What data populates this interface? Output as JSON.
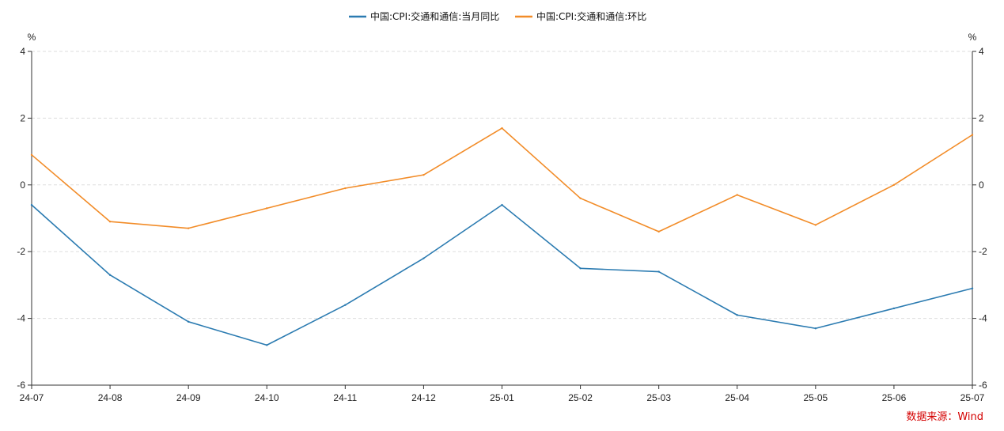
{
  "chart_data": {
    "type": "line",
    "categories": [
      "24-07",
      "24-08",
      "24-09",
      "24-10",
      "24-11",
      "24-12",
      "25-01",
      "25-02",
      "25-03",
      "25-04",
      "25-05",
      "25-06",
      "25-07"
    ],
    "series": [
      {
        "name": "中国:CPI:交通和通信:当月同比",
        "color": "#2b7bb1",
        "values": [
          -0.6,
          -2.7,
          -4.1,
          -4.8,
          -3.6,
          -2.2,
          -0.6,
          -2.5,
          -2.6,
          -3.9,
          -4.3,
          -3.7,
          -3.1
        ]
      },
      {
        "name": "中国:CPI:交通和通信:环比",
        "color": "#f28c28",
        "values": [
          0.9,
          -1.1,
          -1.3,
          -0.7,
          -0.1,
          0.3,
          1.7,
          -0.4,
          -1.4,
          -0.3,
          -1.2,
          0.0,
          1.5
        ]
      }
    ],
    "yticks": [
      4,
      2,
      0,
      -2,
      -4,
      -6
    ],
    "ylim": [
      -6,
      4
    ],
    "y_unit_left": "%",
    "y_unit_right": "%",
    "grid": true,
    "legend_position": "top-center"
  },
  "source_text": "数据来源：Wind"
}
